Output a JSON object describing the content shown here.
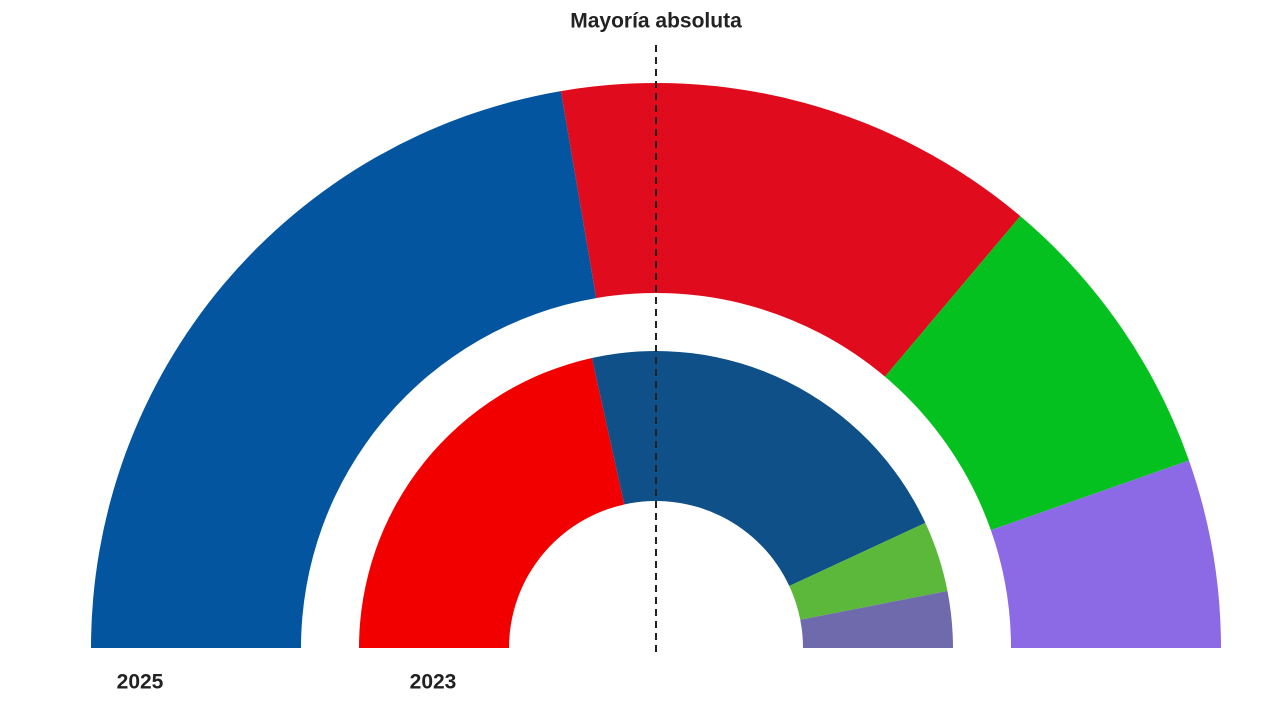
{
  "chart_data": {
    "type": "hemicycle",
    "title": "Mayoría absoluta",
    "rings": [
      {
        "label": "2025",
        "values": [
          29,
          18,
          11,
          7
        ],
        "colors": [
          "#04559f",
          "#e00b1c",
          "#05c11f",
          "#8c6ae6"
        ]
      },
      {
        "label": "2023",
        "values": [
          28,
          28,
          5,
          4
        ],
        "colors": [
          "#f20000",
          "#0f5089",
          "#5cb83a",
          "#6e6aab"
        ]
      }
    ]
  }
}
